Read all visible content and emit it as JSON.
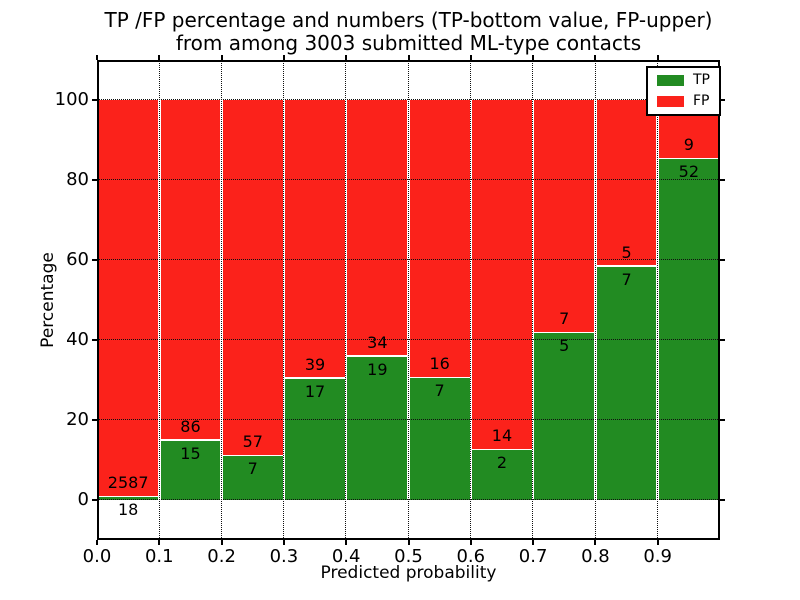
{
  "chart_data": {
    "type": "bar",
    "stacked": true,
    "title_lines": [
      "TP /FP percentage and numbers (TP-bottom value, FP-upper)",
      "from among 3003 submitted ML-type contacts"
    ],
    "total_contacts": 3003,
    "xlabel": "Predicted probability",
    "ylabel": "Percentage",
    "x_tick_labels": [
      "0.0",
      "0.1",
      "0.2",
      "0.3",
      "0.4",
      "0.5",
      "0.6",
      "0.7",
      "0.8",
      "0.9"
    ],
    "x_tick_values": [
      0.0,
      0.1,
      0.2,
      0.3,
      0.4,
      0.5,
      0.6,
      0.7,
      0.8,
      0.9
    ],
    "y_tick_values": [
      0,
      20,
      40,
      60,
      80,
      100
    ],
    "xlim": [
      0.0,
      1.0
    ],
    "ylim": [
      -10,
      110
    ],
    "bin_width": 0.1,
    "grid": "dotted",
    "bars_unit": "percent of bin, TP stacked below FP, each bin sums to 100%",
    "bins_x_start": [
      0.0,
      0.1,
      0.2,
      0.3,
      0.4,
      0.5,
      0.6,
      0.7,
      0.8,
      0.9
    ],
    "series": [
      {
        "name": "TP",
        "color": "#228b22",
        "counts": [
          18,
          15,
          7,
          17,
          19,
          7,
          2,
          5,
          7,
          52
        ]
      },
      {
        "name": "FP",
        "color": "#fb221b",
        "counts": [
          2587,
          86,
          57,
          39,
          34,
          16,
          14,
          7,
          5,
          9
        ]
      }
    ],
    "legend": {
      "position": "upper right",
      "entries": [
        {
          "label": "TP",
          "color": "#228b22"
        },
        {
          "label": "FP",
          "color": "#fb221b"
        }
      ]
    },
    "colors": {
      "tp": "#228b22",
      "fp": "#fb221b",
      "grid": "#111111",
      "text": "#000000",
      "background": "#ffffff"
    }
  }
}
